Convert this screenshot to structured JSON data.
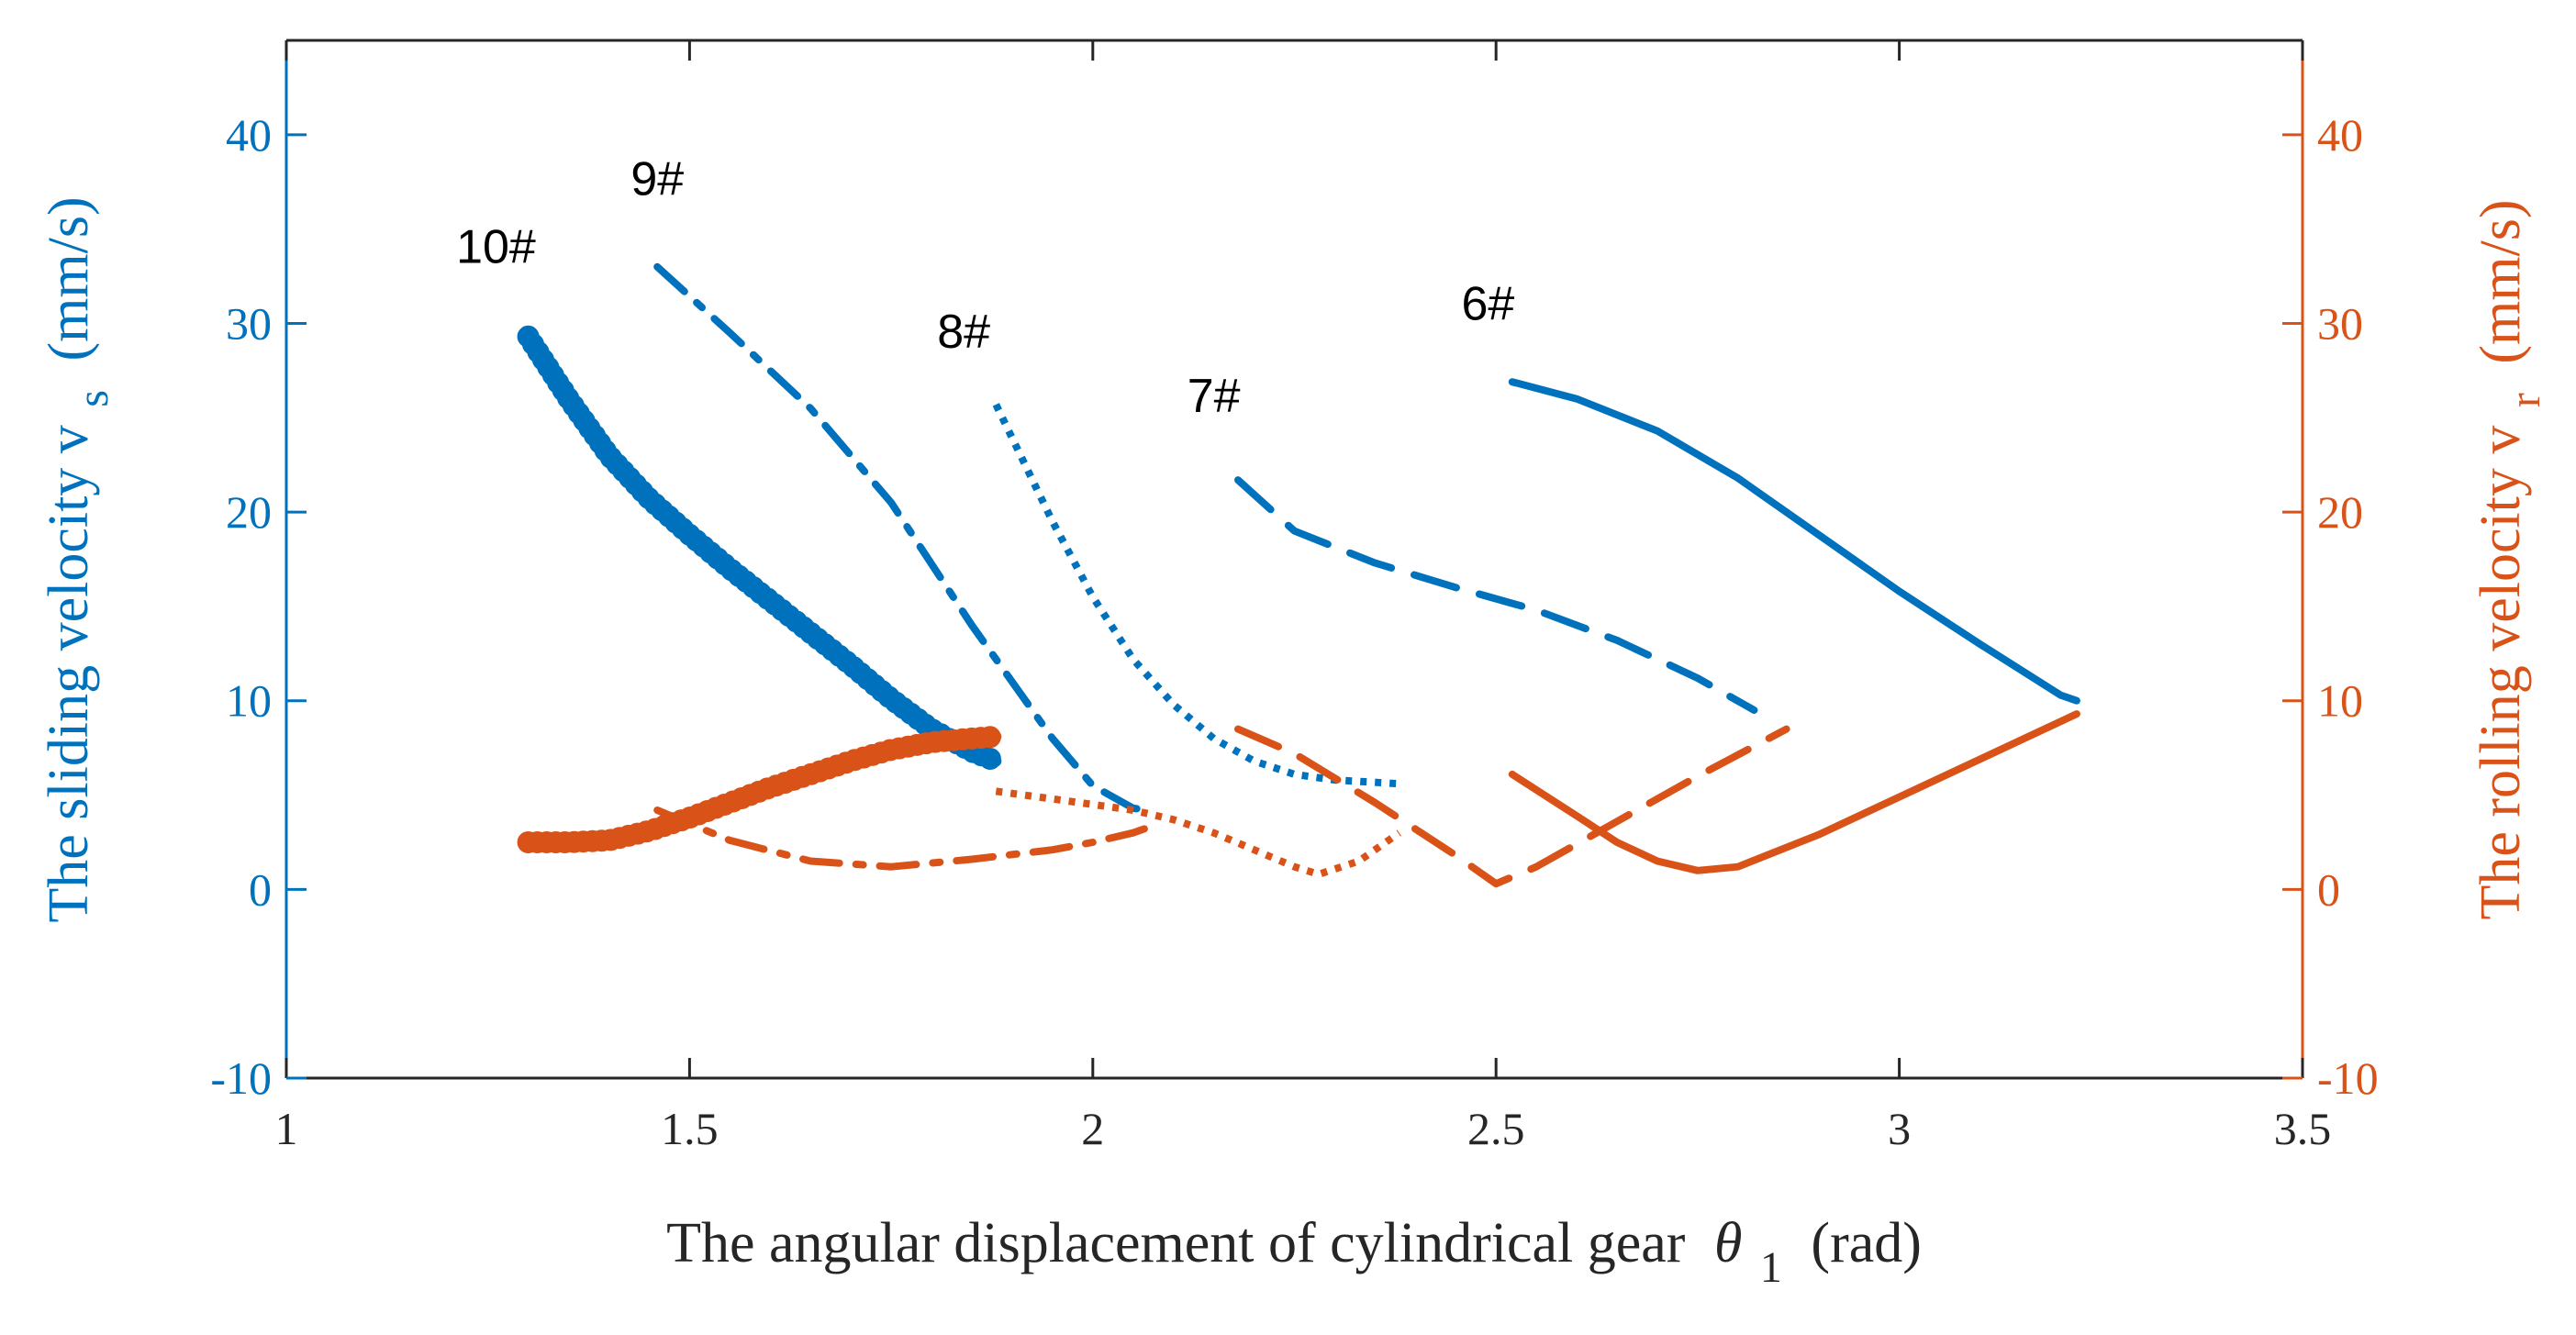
{
  "colors": {
    "sliding": "#0072BD",
    "rolling": "#D95319",
    "axis": "#262626",
    "annotation": "#000000"
  },
  "chart_data": {
    "type": "line",
    "title": "",
    "xlabel": {
      "main": "The angular displacement of cylindrical gear",
      "symbol": "θ",
      "subscript": "1",
      "unit": "(rad)"
    },
    "ylabel_left": {
      "main": "The sliding velocity  v",
      "subscript": "s",
      "unit": "(mm/s)"
    },
    "ylabel_right": {
      "main": "The rolling velocity  v",
      "subscript": "r",
      "unit": "(mm/s)"
    },
    "xlim": [
      1,
      3.5
    ],
    "ylim": [
      -10,
      45
    ],
    "xticks": [
      1,
      1.5,
      2,
      2.5,
      3,
      3.5
    ],
    "xtick_labels": [
      "1",
      "1.5",
      "2",
      "2.5",
      "3",
      "3.5"
    ],
    "yticks": [
      -10,
      0,
      10,
      20,
      30,
      40
    ],
    "ytick_labels": [
      "-10",
      "0",
      "10",
      "20",
      "30",
      "40"
    ],
    "grid": false,
    "annotations": [
      {
        "text": "10#",
        "x": 1.26,
        "y": 33.2
      },
      {
        "text": "9#",
        "x": 1.46,
        "y": 36.8
      },
      {
        "text": "8#",
        "x": 1.84,
        "y": 28.7
      },
      {
        "text": "7#",
        "x": 2.15,
        "y": 25.3
      },
      {
        "text": "6#",
        "x": 2.49,
        "y": 30.2
      }
    ],
    "series": [
      {
        "name": "10# sliding velocity",
        "axis": "left",
        "style": "marker",
        "x": [
          1.3,
          1.35,
          1.4,
          1.45,
          1.5,
          1.55,
          1.6,
          1.65,
          1.7,
          1.75,
          1.8,
          1.85,
          1.88
        ],
        "y": [
          29.3,
          26.0,
          23.0,
          20.7,
          18.8,
          17.0,
          15.3,
          13.6,
          11.9,
          10.1,
          8.5,
          7.3,
          6.8
        ]
      },
      {
        "name": "10# rolling velocity",
        "axis": "right",
        "style": "marker",
        "x": [
          1.3,
          1.35,
          1.4,
          1.45,
          1.5,
          1.55,
          1.6,
          1.65,
          1.7,
          1.75,
          1.8,
          1.85,
          1.88
        ],
        "y": [
          2.5,
          2.5,
          2.6,
          3.1,
          3.8,
          4.6,
          5.4,
          6.1,
          6.8,
          7.4,
          7.8,
          8.0,
          8.1
        ]
      },
      {
        "name": "9# sliding velocity",
        "axis": "left",
        "style": "dashdot",
        "x": [
          1.46,
          1.55,
          1.65,
          1.75,
          1.85,
          1.95,
          2.0,
          2.05,
          2.07
        ],
        "y": [
          33.0,
          29.5,
          25.5,
          20.5,
          14.0,
          8.0,
          5.5,
          4.3,
          4.2
        ]
      },
      {
        "name": "9# rolling velocity",
        "axis": "right",
        "style": "dashdot",
        "x": [
          1.46,
          1.55,
          1.65,
          1.75,
          1.85,
          1.95,
          2.0,
          2.05,
          2.07
        ],
        "y": [
          4.2,
          2.6,
          1.5,
          1.2,
          1.6,
          2.1,
          2.5,
          3.0,
          3.3
        ]
      },
      {
        "name": "8# sliding velocity",
        "axis": "left",
        "style": "dotted",
        "x": [
          1.88,
          1.95,
          2.0,
          2.05,
          2.1,
          2.15,
          2.2,
          2.25,
          2.3,
          2.38
        ],
        "y": [
          25.7,
          19.5,
          15.5,
          12.2,
          9.8,
          8.0,
          6.8,
          6.1,
          5.8,
          5.6
        ]
      },
      {
        "name": "8# rolling velocity",
        "axis": "right",
        "style": "dotted",
        "x": [
          1.88,
          1.95,
          2.0,
          2.05,
          2.1,
          2.15,
          2.2,
          2.25,
          2.28,
          2.33,
          2.38
        ],
        "y": [
          5.2,
          4.8,
          4.5,
          4.2,
          3.7,
          3.0,
          2.1,
          1.2,
          0.8,
          1.5,
          3.0
        ]
      },
      {
        "name": "7# sliding velocity",
        "axis": "left",
        "style": "dashed",
        "x": [
          2.18,
          2.25,
          2.35,
          2.45,
          2.55,
          2.65,
          2.75,
          2.82
        ],
        "y": [
          21.7,
          19.0,
          17.3,
          16.0,
          14.8,
          13.2,
          11.2,
          9.5
        ]
      },
      {
        "name": "7# rolling velocity",
        "axis": "right",
        "style": "dashed",
        "x": [
          2.18,
          2.25,
          2.35,
          2.45,
          2.5,
          2.55,
          2.65,
          2.75,
          2.86
        ],
        "y": [
          8.5,
          7.2,
          4.6,
          1.8,
          0.3,
          1.2,
          3.6,
          6.0,
          8.5
        ]
      },
      {
        "name": "6# sliding velocity",
        "axis": "left",
        "style": "solid",
        "x": [
          2.52,
          2.6,
          2.7,
          2.8,
          2.9,
          3.0,
          3.1,
          3.2,
          3.22
        ],
        "y": [
          26.9,
          26.0,
          24.3,
          21.8,
          18.8,
          15.8,
          13.0,
          10.3,
          10.0
        ]
      },
      {
        "name": "6# rolling velocity",
        "axis": "right",
        "style": "solid",
        "x": [
          2.52,
          2.6,
          2.65,
          2.7,
          2.75,
          2.8,
          2.9,
          3.0,
          3.1,
          3.22
        ],
        "y": [
          6.1,
          3.9,
          2.5,
          1.5,
          1.0,
          1.2,
          2.9,
          4.9,
          6.9,
          9.3
        ]
      }
    ]
  }
}
